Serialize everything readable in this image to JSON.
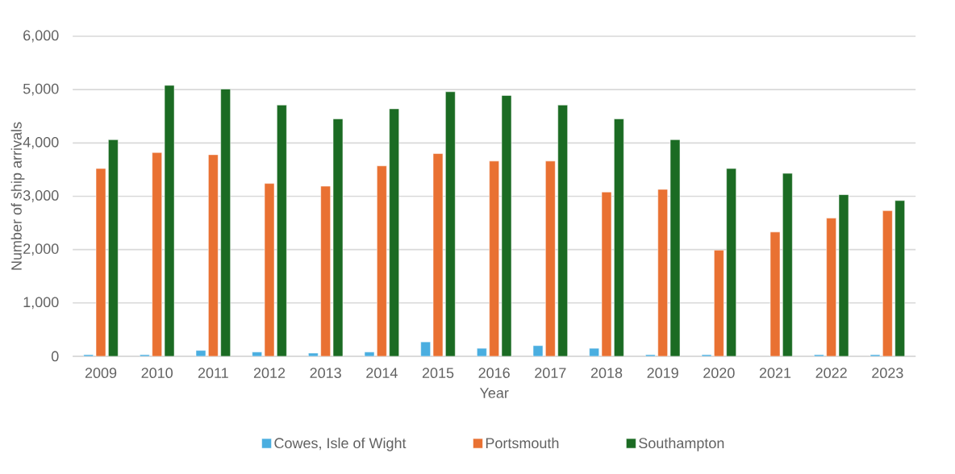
{
  "chart_data": {
    "type": "bar",
    "xlabel": "Year",
    "ylabel": "Number of ship arrivals",
    "categories": [
      "2009",
      "2010",
      "2011",
      "2012",
      "2013",
      "2014",
      "2015",
      "2016",
      "2017",
      "2018",
      "2019",
      "2020",
      "2021",
      "2022",
      "2023"
    ],
    "series": [
      {
        "name": "Cowes, Isle of Wight",
        "color": "#4aaee0",
        "values": [
          30,
          30,
          110,
          80,
          60,
          80,
          270,
          150,
          200,
          150,
          30,
          30,
          null,
          30,
          30
        ]
      },
      {
        "name": "Portsmouth",
        "color": "#e97132",
        "values": [
          3520,
          3820,
          3780,
          3240,
          3190,
          3570,
          3800,
          3660,
          3660,
          3080,
          3130,
          1990,
          2330,
          2590,
          2730
        ]
      },
      {
        "name": "Southampton",
        "color": "#1b6b23",
        "values": [
          4060,
          5080,
          5010,
          4710,
          4450,
          4640,
          4960,
          4890,
          4710,
          4450,
          4060,
          3520,
          3430,
          3030,
          2920
        ]
      }
    ],
    "ylim": [
      0,
      6000
    ],
    "yticks": [
      0,
      {
        "value": 1000,
        "label": "1,000"
      },
      {
        "value": 2000,
        "label": "2,000"
      },
      {
        "value": 3000,
        "label": "3,000"
      },
      {
        "value": 4000,
        "label": "4,000"
      },
      {
        "value": 5000,
        "label": "5,000"
      },
      {
        "value": 6000,
        "label": "6,000"
      }
    ],
    "grid": "y",
    "legend": "bottom"
  }
}
